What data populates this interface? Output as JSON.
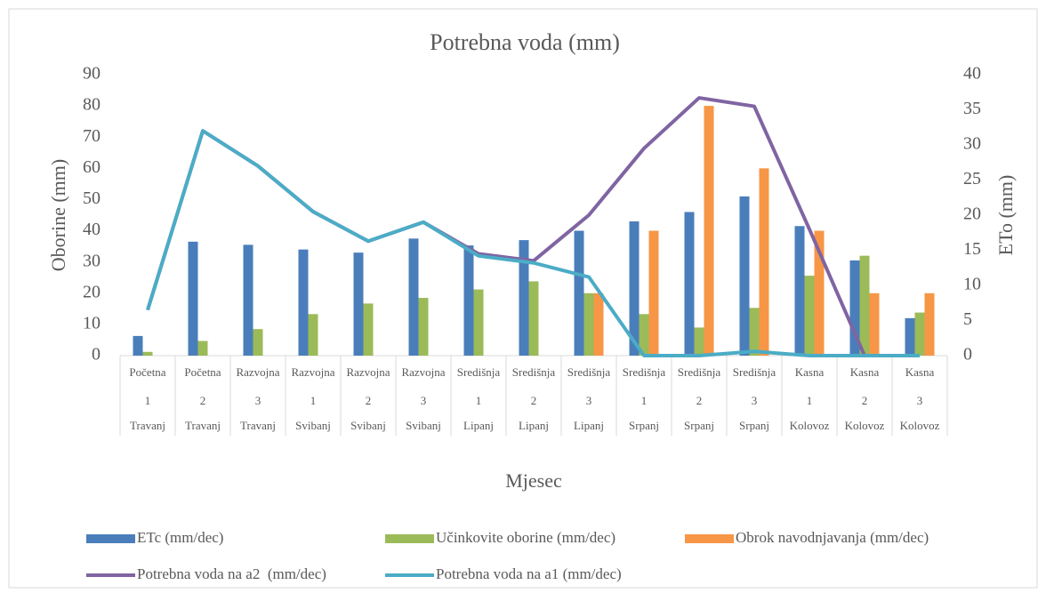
{
  "chart_data": {
    "type": "bar-line",
    "title": "Potrebna voda (mm)",
    "x_label": "Mjesec",
    "y_label": "Oborine (mm)",
    "y2_label": "ETo (mm)",
    "category_levels": [
      [
        "Početna",
        "Početna",
        "Razvojna",
        "Razvojna",
        "Razvojna",
        "Razvojna",
        "Središnja",
        "Središnja",
        "Središnja",
        "Središnja",
        "Središnja",
        "Središnja",
        "Kasna",
        "Kasna",
        "Kasna"
      ],
      [
        "1",
        "2",
        "3",
        "1",
        "2",
        "3",
        "1",
        "2",
        "3",
        "1",
        "2",
        "3",
        "1",
        "2",
        "3"
      ],
      [
        "Travanj",
        "Travanj",
        "Travanj",
        "Svibanj",
        "Svibanj",
        "Svibanj",
        "Lipanj",
        "Lipanj",
        "Lipanj",
        "Srpanj",
        "Srpanj",
        "Srpanj",
        "Kolovoz",
        "Kolovoz",
        "Kolovoz"
      ]
    ],
    "ylim": [
      0,
      90
    ],
    "yticks": [
      0,
      10,
      20,
      30,
      40,
      50,
      60,
      70,
      80,
      90
    ],
    "y2lim": [
      0,
      40
    ],
    "y2ticks": [
      0,
      5,
      10,
      15,
      20,
      25,
      30,
      35,
      40
    ],
    "series": [
      {
        "name": "ETc (mm/dec)",
        "kind": "bar",
        "color": "#4a7ebb",
        "values": [
          6.3,
          36.5,
          35.5,
          34,
          33,
          37.5,
          35.3,
          37,
          40,
          43,
          46,
          51,
          41.5,
          30.5,
          12
        ]
      },
      {
        "name": "Učinkovite oborine (mm/dec)",
        "kind": "bar",
        "color": "#9bbb59",
        "values": [
          1.2,
          4.7,
          8.5,
          13.3,
          16.7,
          18.5,
          21.2,
          23.8,
          20,
          13.3,
          9,
          15.3,
          25.6,
          32,
          13.8
        ]
      },
      {
        "name": "Obrok navodnjavanja (mm/dec)",
        "kind": "bar",
        "color": "#f79646",
        "values": [
          0,
          0,
          0,
          0,
          0,
          0,
          0,
          0,
          20,
          40,
          80,
          60,
          40,
          20,
          20
        ]
      },
      {
        "name": "Potrebna voda na a2  (mm/dec)",
        "kind": "line",
        "axis": "y2",
        "color": "#8064a2",
        "values": [
          6.5,
          32,
          27,
          20.5,
          16.3,
          19,
          14.5,
          13.5,
          20,
          29.5,
          36.7,
          35.5,
          18,
          0,
          0
        ]
      },
      {
        "name": "Potrebna voda na a1 (mm/dec)",
        "kind": "line",
        "axis": "y2",
        "color": "#4bacc6",
        "values": [
          6.5,
          32,
          27,
          20.5,
          16.3,
          19,
          14.2,
          13.2,
          11.2,
          0,
          0,
          0.6,
          0,
          0,
          0
        ]
      }
    ]
  }
}
